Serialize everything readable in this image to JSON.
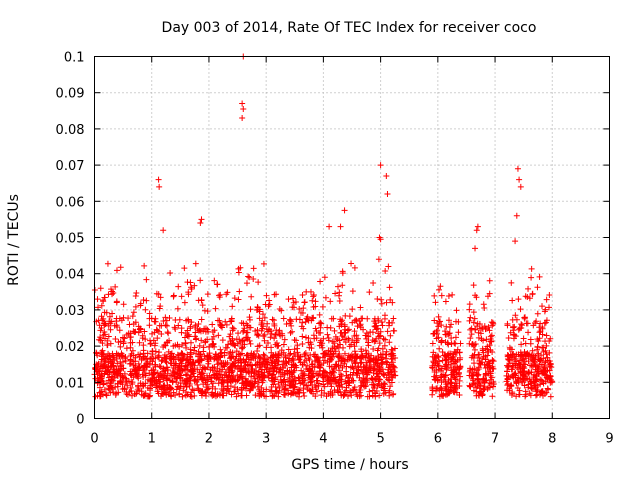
{
  "chart_data": {
    "type": "scatter",
    "title": "Day 003 of 2014, Rate Of TEC Index for receiver coco",
    "xlabel": "GPS time / hours",
    "ylabel": "ROTI / TECUs",
    "xlim": [
      0,
      9
    ],
    "ylim": [
      0,
      0.1
    ],
    "xticks": [
      0,
      1,
      2,
      3,
      4,
      5,
      6,
      7,
      8,
      9
    ],
    "xtick_labels": [
      "0",
      "1",
      "2",
      "3",
      "4",
      "5",
      "6",
      "7",
      "8",
      "9"
    ],
    "yticks": [
      0,
      0.01,
      0.02,
      0.03,
      0.04,
      0.05,
      0.06,
      0.07,
      0.08,
      0.09,
      0.1
    ],
    "ytick_labels": [
      "0",
      "0.01",
      "0.02",
      "0.03",
      "0.04",
      "0.05",
      "0.06",
      "0.07",
      "0.08",
      "0.09",
      "0.1"
    ],
    "grid": true,
    "marker": "+",
    "color": "#ff0000",
    "series": [
      {
        "name": "ROTI",
        "segments": [
          [
            0.0,
            5.27
          ],
          [
            5.9,
            6.4
          ],
          [
            6.55,
            6.98
          ],
          [
            7.2,
            8.0
          ]
        ],
        "notable_points": [
          {
            "x": 2.6,
            "y": 0.1
          },
          {
            "x": 2.58,
            "y": 0.087
          },
          {
            "x": 2.6,
            "y": 0.0855
          },
          {
            "x": 2.58,
            "y": 0.083
          },
          {
            "x": 1.12,
            "y": 0.066
          },
          {
            "x": 1.13,
            "y": 0.064
          },
          {
            "x": 5.0,
            "y": 0.07
          },
          {
            "x": 5.1,
            "y": 0.067
          },
          {
            "x": 5.12,
            "y": 0.062
          },
          {
            "x": 7.4,
            "y": 0.069
          },
          {
            "x": 7.42,
            "y": 0.066
          },
          {
            "x": 7.45,
            "y": 0.064
          },
          {
            "x": 7.38,
            "y": 0.056
          },
          {
            "x": 1.87,
            "y": 0.055
          },
          {
            "x": 1.85,
            "y": 0.054
          },
          {
            "x": 4.37,
            "y": 0.0575
          },
          {
            "x": 4.3,
            "y": 0.053
          },
          {
            "x": 6.7,
            "y": 0.053
          },
          {
            "x": 6.68,
            "y": 0.052
          },
          {
            "x": 1.2,
            "y": 0.052
          },
          {
            "x": 4.1,
            "y": 0.053
          },
          {
            "x": 4.98,
            "y": 0.05
          },
          {
            "x": 5.0,
            "y": 0.0495
          },
          {
            "x": 4.97,
            "y": 0.044
          },
          {
            "x": 7.35,
            "y": 0.049
          },
          {
            "x": 6.65,
            "y": 0.047
          }
        ]
      }
    ]
  }
}
